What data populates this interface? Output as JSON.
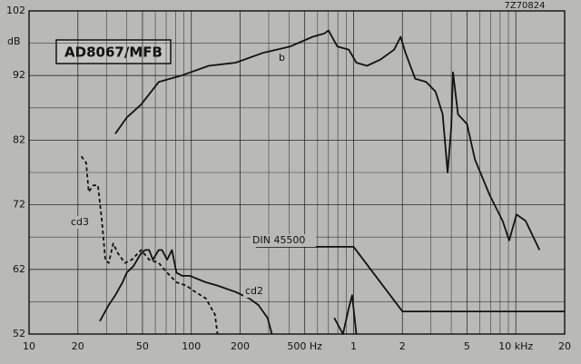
{
  "chart_data": {
    "type": "line",
    "title": "AD8067/MFB",
    "code": "7Z70824",
    "ylabel": "dB",
    "log_x": true,
    "grid": true,
    "xlim": [
      10,
      20000
    ],
    "ylim": [
      52,
      102
    ],
    "yticks": [
      52,
      62,
      72,
      82,
      92,
      102
    ],
    "xticks": [
      10,
      20,
      50,
      100,
      200,
      {
        "value": 500,
        "label": "500 Hz"
      },
      {
        "value": 1000,
        "label": "1"
      },
      {
        "value": 2000,
        "label": "2"
      },
      {
        "value": 5000,
        "label": "5"
      },
      {
        "value": 10000,
        "label": "10 kHz"
      },
      {
        "value": 20000,
        "label": "20"
      }
    ],
    "series": [
      {
        "name": "b",
        "color": "#111111",
        "dashed": false,
        "x": [
          34,
          40,
          49,
          63,
          87,
          128,
          188,
          276,
          407,
          560,
          661,
          700,
          794,
          935,
          1040,
          1210,
          1470,
          1780,
          1950,
          2090,
          2400,
          2800,
          3200,
          3540,
          3800,
          4000,
          4100,
          4400,
          5000,
          5600,
          6900,
          8300,
          9100,
          10100,
          11500,
          14000
        ],
        "values": [
          83,
          85.5,
          87.5,
          91,
          92,
          93.5,
          94,
          95.5,
          96.5,
          98,
          98.5,
          99,
          96.5,
          96,
          94,
          93.5,
          94.5,
          96,
          98,
          95.5,
          91.5,
          91,
          89.5,
          86,
          77,
          84,
          92.5,
          86,
          84.5,
          79,
          73.5,
          69.5,
          66.5,
          70.5,
          69.5,
          65
        ]
      },
      {
        "name": "cd3",
        "color": "#111111",
        "dashed": true,
        "x": [
          21,
          22.5,
          23.3,
          24.9,
          26.6,
          28,
          29.5,
          31,
          33,
          35.3,
          39,
          43,
          49,
          55,
          63,
          71,
          81,
          93,
          106,
          123,
          140,
          145
        ],
        "values": [
          79.5,
          78.5,
          74,
          75,
          75,
          70,
          63.5,
          63,
          66,
          64.5,
          63,
          63.5,
          65,
          63.5,
          63,
          61.5,
          60,
          59.5,
          58.5,
          57.5,
          55,
          52
        ]
      },
      {
        "name": "cd2",
        "color": "#111111",
        "dashed": false,
        "x": [
          27.3,
          31,
          34,
          37.7,
          40,
          44,
          49,
          52,
          55,
          58,
          63,
          66,
          71,
          76,
          81,
          88,
          98,
          123,
          145,
          188,
          228,
          259,
          295,
          314,
          720,
          760,
          860,
          935,
          980,
          1040
        ],
        "values": [
          54,
          56.5,
          58,
          60,
          61.5,
          62.5,
          64.5,
          65,
          65,
          63.5,
          65,
          65,
          63.5,
          65,
          61.5,
          61,
          61,
          60,
          59.5,
          58.5,
          57.5,
          56.5,
          54.5,
          52,
          null,
          54.5,
          52,
          56,
          58,
          52
        ]
      },
      {
        "name": "DIN 45500",
        "color": "#111111",
        "dashed": false,
        "x": [
          250,
          1000,
          2000,
          20000
        ],
        "values": [
          65.5,
          65.5,
          55.5,
          55.5
        ]
      }
    ]
  }
}
